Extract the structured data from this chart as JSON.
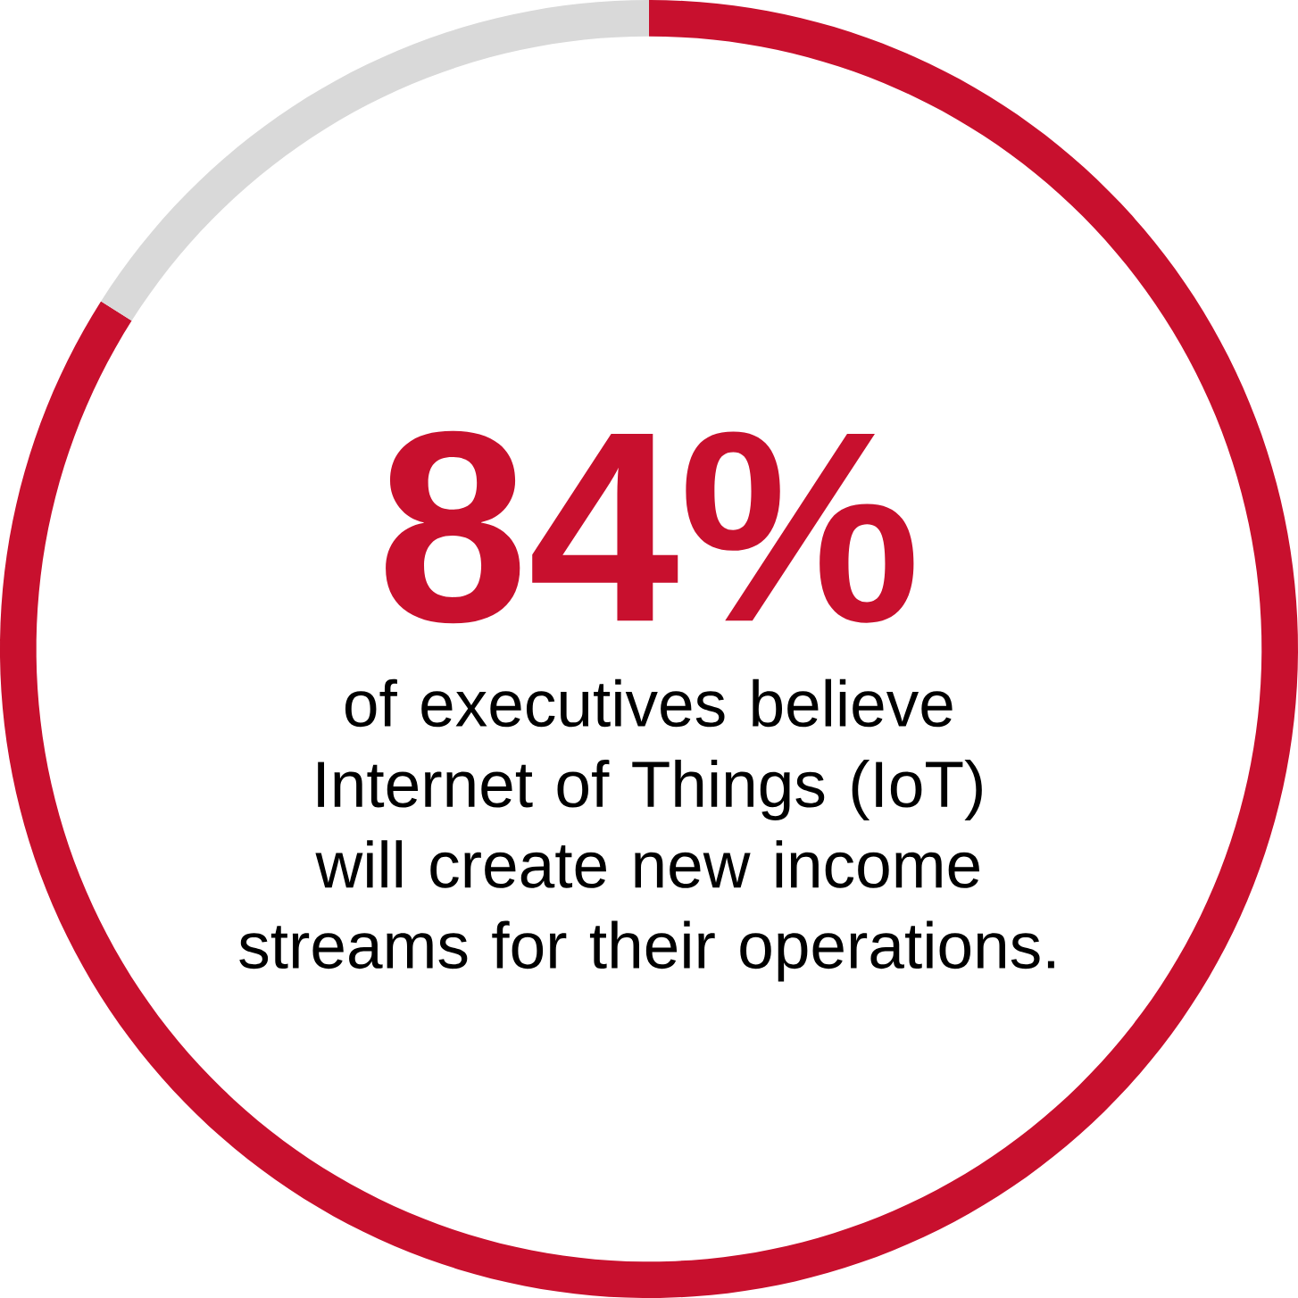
{
  "chart_data": {
    "type": "donut",
    "categories": [
      null,
      null
    ],
    "values": [
      84,
      16
    ],
    "colors": [
      "#c8102e",
      "#d9d9d9"
    ],
    "value_labels": [
      "84%",
      null
    ],
    "subtitle": "of executives believe Internet of Things (IoT) will create new income streams for their operations."
  }
}
